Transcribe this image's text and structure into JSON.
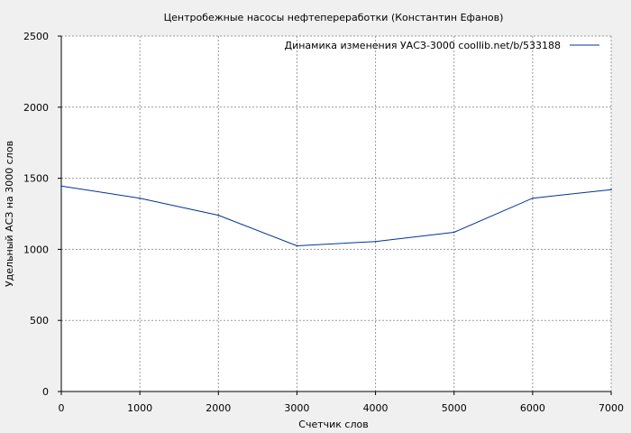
{
  "chart_data": {
    "type": "line",
    "title": "Центробежные насосы нефтепереработки (Константин Ефанов)",
    "xlabel": "Счетчик слов",
    "ylabel": "Удельный АСЗ на 3000 слов",
    "xlim": [
      0,
      7000
    ],
    "ylim": [
      0,
      2500
    ],
    "x_ticks": [
      0,
      1000,
      2000,
      3000,
      4000,
      5000,
      6000,
      7000
    ],
    "y_ticks": [
      0,
      500,
      1000,
      1500,
      2000,
      2500
    ],
    "grid": true,
    "legend_position": "top-right",
    "series": [
      {
        "name": "Динамика изменения УАСЗ-3000  coollib.net/b/533188",
        "color": "#003399",
        "x": [
          0,
          1000,
          2000,
          3000,
          4000,
          5000,
          6000,
          7000
        ],
        "y": [
          1445,
          1360,
          1240,
          1025,
          1055,
          1120,
          1360,
          1420
        ]
      }
    ]
  }
}
